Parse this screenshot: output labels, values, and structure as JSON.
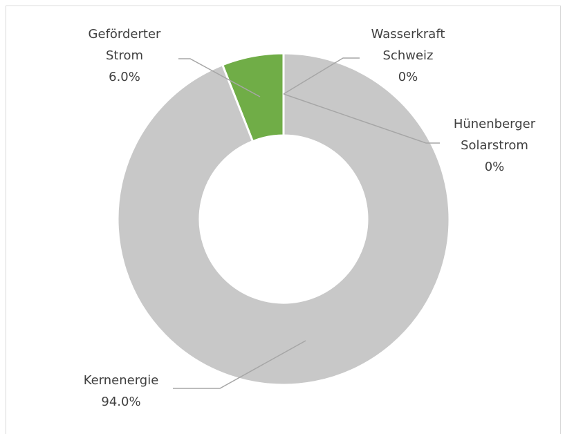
{
  "chart_data": {
    "type": "donut",
    "categories": [
      "Wasserkraft Schweiz",
      "Hünenberger Solarstrom",
      "Kernenergie",
      "Geförderter Strom"
    ],
    "values": [
      0,
      0,
      94.0,
      6.0
    ],
    "value_labels": [
      "0%",
      "0%",
      "94.0%",
      "6.0%"
    ],
    "colors": [
      "#5b9bd5",
      "#ffc000",
      "#c8c8c8",
      "#70ad47"
    ]
  }
}
